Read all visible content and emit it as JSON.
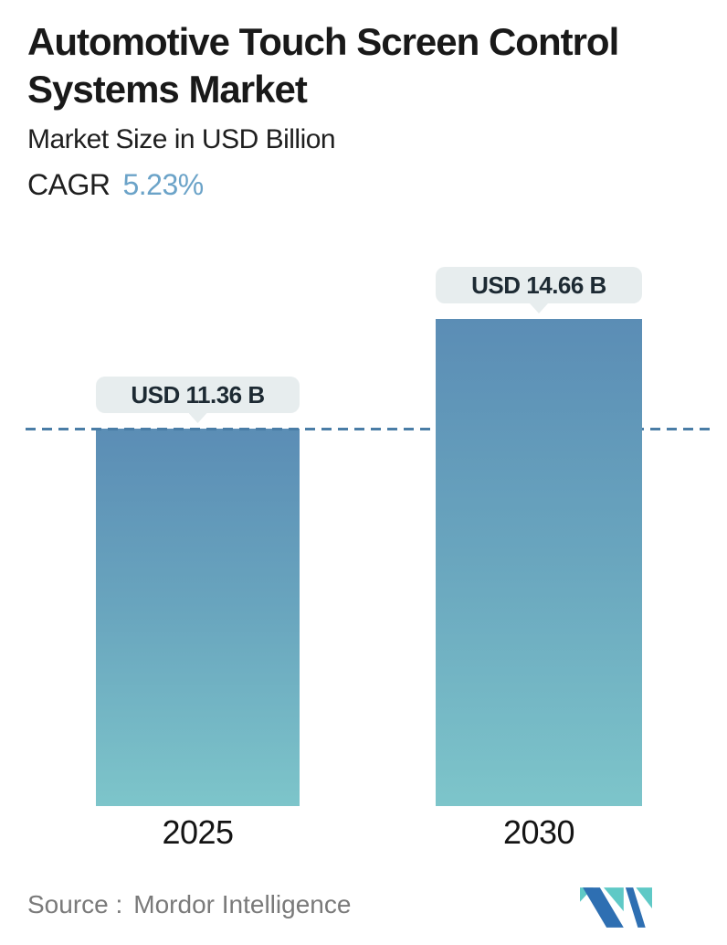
{
  "header": {
    "title": "Automotive Touch Screen Control Systems Market",
    "subtitle": "Market Size in USD Billion",
    "cagr_label": "CAGR",
    "cagr_value": "5.23%"
  },
  "chart_data": {
    "type": "bar",
    "categories": [
      "2025",
      "2030"
    ],
    "values": [
      11.36,
      14.66
    ],
    "value_labels": [
      "USD 11.36 B",
      "USD 14.66 B"
    ],
    "unit": "USD Billion",
    "title": "Automotive Touch Screen Control Systems Market",
    "subtitle": "Market Size in USD Billion",
    "cagr": "5.23%",
    "baseline": 0,
    "reference": {
      "style": "dashed",
      "value": 11.36
    },
    "legend": "none",
    "grid": "off",
    "bar_gradient_top": "#5b8db5",
    "bar_gradient_bottom": "#7dc5ca",
    "reference_line_color": "#4a7da6",
    "tooltip_bg": "#e7edee"
  },
  "footer": {
    "source_label": "Source :",
    "source_name": "Mordor Intelligence",
    "logo_name": "mordor-intelligence-logo",
    "logo_blue": "#2e6fb2",
    "logo_teal": "#5fc9c6"
  },
  "colors": {
    "accent_blue": "#6ba3c8",
    "text_dark": "#191919",
    "source_gray": "#7a7a7a"
  }
}
